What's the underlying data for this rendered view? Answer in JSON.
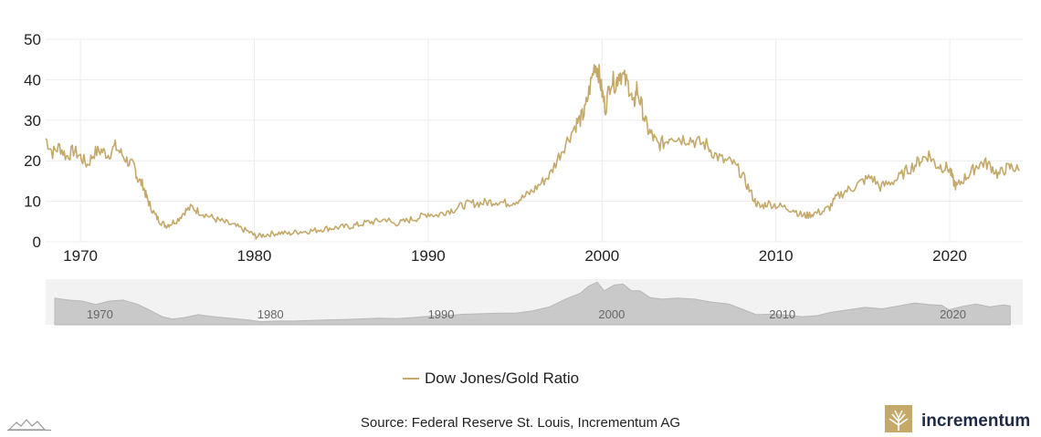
{
  "chart_data": {
    "type": "line",
    "title": "",
    "xlabel": "",
    "ylabel": "",
    "xlim": [
      1968,
      2024.2
    ],
    "ylim": [
      0,
      50
    ],
    "yticks": [
      "0",
      "10",
      "20",
      "30",
      "40",
      "50"
    ],
    "xticks": [
      "1970",
      "1980",
      "1990",
      "2000",
      "2010",
      "2020"
    ],
    "navigator_ticks": [
      "1970",
      "1980",
      "1990",
      "2000",
      "2010",
      "2020"
    ],
    "series": [
      {
        "name": "Dow Jones/Gold Ratio",
        "color": "#c4a96a",
        "points": [
          [
            1968.0,
            25.5
          ],
          [
            1968.4,
            22.0
          ],
          [
            1968.8,
            23.5
          ],
          [
            1969.2,
            21.0
          ],
          [
            1969.6,
            22.5
          ],
          [
            1970.0,
            21.0
          ],
          [
            1970.4,
            19.0
          ],
          [
            1970.8,
            22.0
          ],
          [
            1971.2,
            22.5
          ],
          [
            1971.6,
            21.5
          ],
          [
            1972.0,
            23.5
          ],
          [
            1972.4,
            21.5
          ],
          [
            1972.8,
            19.5
          ],
          [
            1973.1,
            18.5
          ],
          [
            1973.3,
            15.5
          ],
          [
            1973.6,
            14.0
          ],
          [
            1973.8,
            11.0
          ],
          [
            1974.0,
            9.0
          ],
          [
            1974.3,
            6.5
          ],
          [
            1974.6,
            5.0
          ],
          [
            1974.9,
            4.0
          ],
          [
            1975.2,
            4.5
          ],
          [
            1975.6,
            5.5
          ],
          [
            1976.0,
            7.5
          ],
          [
            1976.4,
            8.5
          ],
          [
            1976.8,
            7.5
          ],
          [
            1977.3,
            6.5
          ],
          [
            1977.8,
            5.5
          ],
          [
            1978.3,
            4.8
          ],
          [
            1978.8,
            4.0
          ],
          [
            1979.3,
            3.2
          ],
          [
            1979.8,
            2.2
          ],
          [
            1980.1,
            1.3
          ],
          [
            1980.5,
            1.6
          ],
          [
            1981.0,
            2.0
          ],
          [
            1981.5,
            2.2
          ],
          [
            1982.0,
            2.0
          ],
          [
            1982.5,
            2.5
          ],
          [
            1983.0,
            2.6
          ],
          [
            1983.5,
            2.8
          ],
          [
            1984.0,
            3.2
          ],
          [
            1984.5,
            3.4
          ],
          [
            1985.0,
            3.6
          ],
          [
            1985.5,
            3.8
          ],
          [
            1986.0,
            4.2
          ],
          [
            1986.5,
            4.8
          ],
          [
            1987.0,
            5.0
          ],
          [
            1987.6,
            5.6
          ],
          [
            1988.0,
            4.5
          ],
          [
            1988.5,
            4.8
          ],
          [
            1989.0,
            5.5
          ],
          [
            1989.5,
            6.0
          ],
          [
            1990.0,
            7.0
          ],
          [
            1990.5,
            6.5
          ],
          [
            1991.0,
            7.5
          ],
          [
            1991.5,
            8.0
          ],
          [
            1992.0,
            9.0
          ],
          [
            1992.5,
            9.5
          ],
          [
            1993.0,
            9.5
          ],
          [
            1993.5,
            9.8
          ],
          [
            1994.0,
            10.0
          ],
          [
            1994.5,
            9.5
          ],
          [
            1995.0,
            10.0
          ],
          [
            1995.5,
            11.0
          ],
          [
            1996.0,
            12.5
          ],
          [
            1996.5,
            14.5
          ],
          [
            1997.0,
            16.5
          ],
          [
            1997.5,
            21.0
          ],
          [
            1998.0,
            25.0
          ],
          [
            1998.5,
            29.0
          ],
          [
            1998.8,
            30.5
          ],
          [
            1999.0,
            32.0
          ],
          [
            1999.3,
            38.0
          ],
          [
            1999.6,
            44.0
          ],
          [
            1999.8,
            42.0
          ],
          [
            2000.0,
            37.0
          ],
          [
            2000.2,
            33.0
          ],
          [
            2000.5,
            40.0
          ],
          [
            2000.8,
            39.0
          ],
          [
            2001.0,
            42.0
          ],
          [
            2001.3,
            40.0
          ],
          [
            2001.6,
            38.0
          ],
          [
            2001.8,
            33.0
          ],
          [
            2002.0,
            38.0
          ],
          [
            2002.3,
            33.0
          ],
          [
            2002.6,
            28.0
          ],
          [
            2002.9,
            26.0
          ],
          [
            2003.2,
            24.0
          ],
          [
            2003.6,
            24.5
          ],
          [
            2004.0,
            26.5
          ],
          [
            2004.5,
            25.5
          ],
          [
            2005.0,
            25.5
          ],
          [
            2005.5,
            24.5
          ],
          [
            2006.0,
            24.0
          ],
          [
            2006.5,
            21.5
          ],
          [
            2007.0,
            20.0
          ],
          [
            2007.5,
            19.5
          ],
          [
            2008.0,
            17.0
          ],
          [
            2008.4,
            13.5
          ],
          [
            2008.8,
            10.0
          ],
          [
            2009.1,
            8.5
          ],
          [
            2009.5,
            9.5
          ],
          [
            2010.0,
            9.0
          ],
          [
            2010.5,
            8.5
          ],
          [
            2011.0,
            8.0
          ],
          [
            2011.5,
            6.5
          ],
          [
            2011.8,
            6.5
          ],
          [
            2012.2,
            7.0
          ],
          [
            2012.7,
            7.5
          ],
          [
            2013.1,
            8.5
          ],
          [
            2013.5,
            11.0
          ],
          [
            2014.0,
            12.5
          ],
          [
            2014.5,
            13.5
          ],
          [
            2015.0,
            15.0
          ],
          [
            2015.5,
            16.0
          ],
          [
            2016.0,
            13.5
          ],
          [
            2016.5,
            14.5
          ],
          [
            2017.0,
            15.5
          ],
          [
            2017.5,
            17.5
          ],
          [
            2018.0,
            19.0
          ],
          [
            2018.4,
            20.5
          ],
          [
            2018.8,
            21.5
          ],
          [
            2019.2,
            19.0
          ],
          [
            2019.6,
            18.5
          ],
          [
            2020.0,
            18.0
          ],
          [
            2020.2,
            15.0
          ],
          [
            2020.4,
            13.5
          ],
          [
            2020.8,
            15.5
          ],
          [
            2021.2,
            17.0
          ],
          [
            2021.6,
            19.0
          ],
          [
            2022.0,
            19.5
          ],
          [
            2022.4,
            18.5
          ],
          [
            2022.8,
            16.5
          ],
          [
            2023.2,
            18.0
          ],
          [
            2023.6,
            18.5
          ],
          [
            2024.0,
            17.5
          ]
        ]
      }
    ],
    "legend": {
      "position": "bottom-center"
    }
  },
  "source_text": "Source: Federal Reserve St. Louis, Incrementum AG",
  "brand": {
    "name": "incrementum",
    "icon": "tree-logo-icon",
    "color": "#c4a96a"
  },
  "chart_icon": "chart-mountain-icon",
  "colors": {
    "series": "#c4a96a",
    "grid": "#ececec",
    "navigator_bg": "#f2f2f2",
    "navigator_fill": "#c9c9c9"
  }
}
